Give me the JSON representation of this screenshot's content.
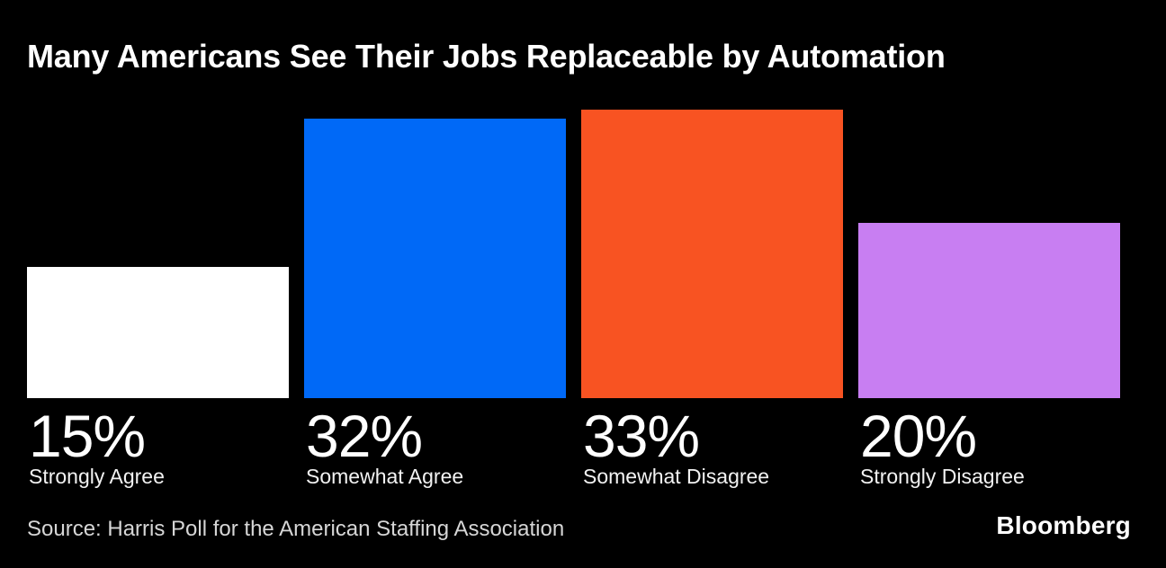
{
  "title": "Many Americans See Their Jobs Replaceable by Automation",
  "source": "Source: Harris Poll for the American Staffing Association",
  "brand": "Bloomberg",
  "colors": {
    "background": "#000000",
    "title_text": "#ffffff",
    "source_text": "#d6d6d6"
  },
  "chart_data": {
    "type": "bar",
    "title": "Many Americans See Their Jobs Replaceable by Automation",
    "categories": [
      "Strongly Agree",
      "Somewhat Agree",
      "Somewhat Disagree",
      "Strongly Disagree"
    ],
    "values": [
      15,
      32,
      33,
      20
    ],
    "value_labels": [
      "15%",
      "32%",
      "33%",
      "20%"
    ],
    "bar_colors": [
      "#ffffff",
      "#0069f7",
      "#f85322",
      "#c87ef2"
    ],
    "xlabel": "",
    "ylabel": "",
    "ylim": [
      0,
      33
    ],
    "grid": false,
    "legend": "none",
    "value_label_position": "below-bar",
    "background": "#000000"
  }
}
